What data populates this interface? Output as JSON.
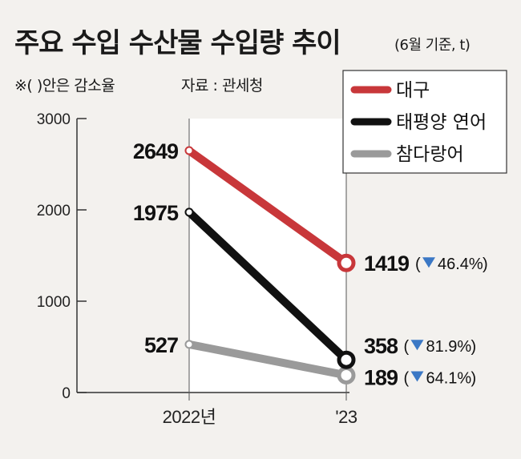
{
  "title": "주요 수입 수산물 수입량 추이",
  "subtitle": "(6월 기준, t)",
  "note": "※( )안은 감소율",
  "source": "자료 : 관세청",
  "colors": {
    "background": "#f3f1ee",
    "plot_area": "#ffffff",
    "cod": "#c8373a",
    "salmon": "#111111",
    "pollock": "#9a9a9a",
    "arrow": "#3b78c5"
  },
  "chart_data": {
    "type": "line",
    "title": "주요 수입 수산물 수입량 추이",
    "unit": "t",
    "categories": [
      "2022년",
      "'23"
    ],
    "ylim": [
      0,
      3000
    ],
    "yticks": [
      0,
      1000,
      2000,
      3000
    ],
    "ytick_labels": [
      "0",
      "1000",
      "2000",
      "3000"
    ],
    "legend_position": "top-right",
    "series": [
      {
        "key": "cod",
        "name": "대구",
        "values": [
          2649,
          1419
        ],
        "labels": [
          "2649",
          "1419"
        ],
        "change": "46.4%",
        "change_prefix": "(",
        "change_suffix": ")"
      },
      {
        "key": "salmon",
        "name": "태평양 연어",
        "values": [
          1975,
          358
        ],
        "labels": [
          "1975",
          "358"
        ],
        "change": "81.9%",
        "change_prefix": "(",
        "change_suffix": ")"
      },
      {
        "key": "pollock",
        "name": "참다랑어",
        "values": [
          527,
          189
        ],
        "labels": [
          "527",
          "189"
        ],
        "change": "64.1%",
        "change_prefix": "(",
        "change_suffix": ")"
      }
    ]
  }
}
